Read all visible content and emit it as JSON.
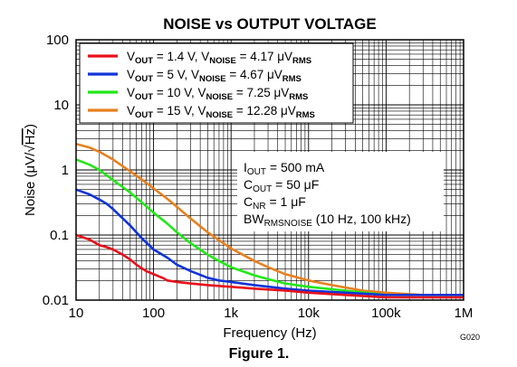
{
  "chart_data": {
    "type": "line",
    "title": "NOISE vs OUTPUT VOLTAGE",
    "xlabel": "Frequency (Hz)",
    "ylabel_parts": {
      "pre": "Noise (μV/",
      "rad": "√",
      "hz": "Hz",
      "post": ")"
    },
    "x_scale": "log",
    "y_scale": "log",
    "xlim": [
      10,
      1000000
    ],
    "ylim": [
      0.01,
      100
    ],
    "grid": true,
    "legend_position": "top-left",
    "x_ticks": [
      10,
      100,
      1000,
      10000,
      100000,
      1000000
    ],
    "x_tick_labels": [
      "10",
      "100",
      "1k",
      "10k",
      "100k",
      "1M"
    ],
    "y_ticks": [
      0.01,
      0.1,
      1,
      10,
      100
    ],
    "y_tick_labels": [
      "0.01",
      "0.1",
      "1",
      "10",
      "100"
    ],
    "series": [
      {
        "legend": {
          "v": "V",
          "vsub": "OUT",
          "vval": " = 1.4 V, ",
          "n": "V",
          "nsub": "NOISE",
          "nval": " = 4.17 μV",
          "rsub": "RMS"
        },
        "color": "#e8101a",
        "x": [
          10,
          15,
          20,
          25,
          30,
          40,
          50,
          60,
          80,
          100,
          130,
          150,
          200,
          300,
          500,
          1000,
          2000,
          5000,
          10000,
          30000,
          100000,
          300000,
          1000000
        ],
        "y": [
          0.1,
          0.085,
          0.07,
          0.065,
          0.06,
          0.05,
          0.042,
          0.035,
          0.028,
          0.025,
          0.022,
          0.02,
          0.019,
          0.018,
          0.017,
          0.016,
          0.015,
          0.014,
          0.013,
          0.012,
          0.011,
          0.011,
          0.011
        ]
      },
      {
        "legend": {
          "v": "V",
          "vsub": "OUT",
          "vval": " = 5 V, ",
          "n": "V",
          "nsub": "NOISE",
          "nval": " = 4.67 μV",
          "rsub": "RMS"
        },
        "color": "#1034d8",
        "x": [
          10,
          15,
          20,
          25,
          30,
          40,
          50,
          70,
          100,
          150,
          200,
          300,
          500,
          700,
          1000,
          2000,
          5000,
          10000,
          30000,
          100000,
          300000,
          1000000
        ],
        "y": [
          0.5,
          0.42,
          0.35,
          0.3,
          0.25,
          0.18,
          0.14,
          0.09,
          0.06,
          0.045,
          0.035,
          0.028,
          0.022,
          0.02,
          0.019,
          0.017,
          0.015,
          0.014,
          0.013,
          0.012,
          0.012,
          0.012
        ]
      },
      {
        "legend": {
          "v": "V",
          "vsub": "OUT",
          "vval": " = 10 V, ",
          "n": "V",
          "nsub": "NOISE",
          "nval": " = 7.25 μV",
          "rsub": "RMS"
        },
        "color": "#22e818",
        "x": [
          10,
          15,
          20,
          30,
          50,
          70,
          100,
          150,
          200,
          300,
          500,
          700,
          1000,
          2000,
          3000,
          5000,
          10000,
          30000,
          100000,
          300000,
          1000000
        ],
        "y": [
          1.45,
          1.2,
          1.0,
          0.7,
          0.45,
          0.32,
          0.22,
          0.15,
          0.11,
          0.075,
          0.05,
          0.04,
          0.032,
          0.024,
          0.021,
          0.018,
          0.016,
          0.014,
          0.012,
          0.012,
          0.012
        ]
      },
      {
        "legend": {
          "v": "V",
          "vsub": "OUT",
          "vval": " = 15 V, ",
          "n": "V",
          "nsub": "NOISE",
          "nval": " = 12.28 μV",
          "rsub": "RMS"
        },
        "color": "#e8801e",
        "x": [
          10,
          15,
          20,
          30,
          50,
          70,
          100,
          150,
          200,
          300,
          500,
          1000,
          2000,
          3000,
          5000,
          10000,
          20000,
          50000,
          100000,
          300000,
          1000000
        ],
        "y": [
          2.5,
          2.2,
          1.9,
          1.45,
          0.95,
          0.72,
          0.52,
          0.36,
          0.27,
          0.18,
          0.11,
          0.062,
          0.04,
          0.032,
          0.025,
          0.02,
          0.017,
          0.014,
          0.013,
          0.012,
          0.012
        ]
      }
    ],
    "conditions": [
      {
        "main": "I",
        "sub": "OUT",
        "rest": " = 500 mA"
      },
      {
        "main": "C",
        "sub": "OUT",
        "rest": " = 50 μF"
      },
      {
        "main": "C",
        "sub": "NR",
        "rest": " = 1 μF"
      },
      {
        "main": "BW",
        "sub": "RMSNOISE",
        "rest": " (10 Hz, 100 kHz)"
      }
    ]
  },
  "caption": "Figure 1.",
  "graph_code": "G020"
}
